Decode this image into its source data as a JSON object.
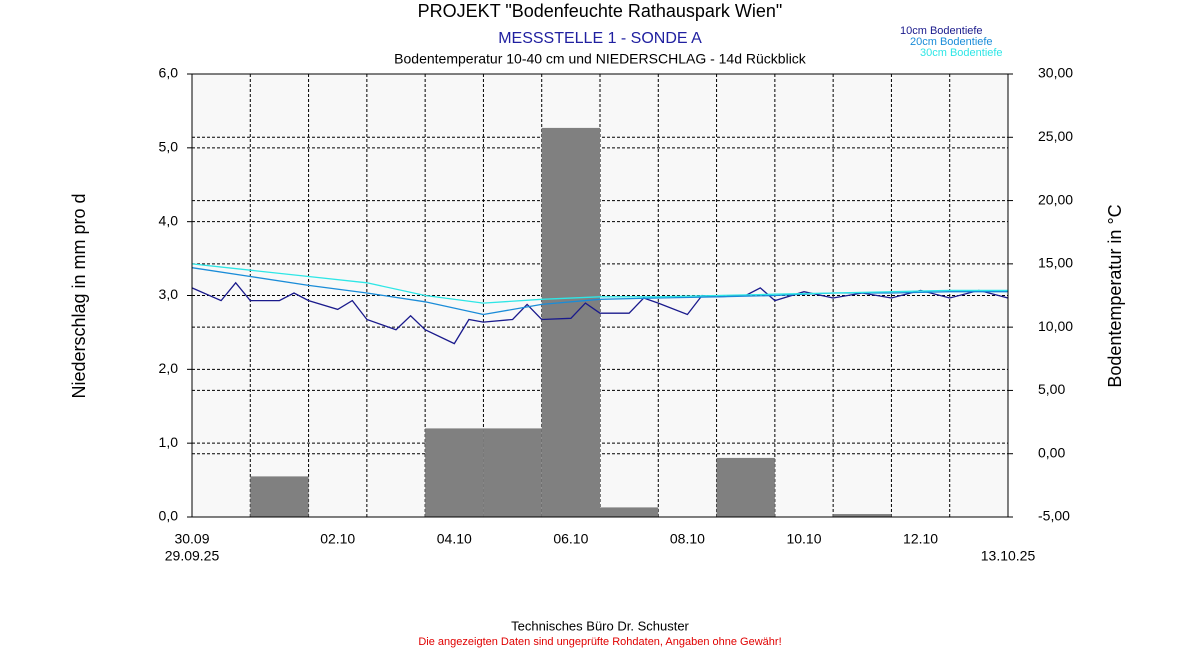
{
  "chart_data": {
    "type": "bar",
    "title": "PROJEKT \"Bodenfeuchte Rathauspark Wien\"",
    "subtitle": "MESSSTELLE 1 - SONDE A",
    "description": "Bodentemperatur 10-40 cm und NIEDERSCHLAG - 14d Rückblick",
    "ylabel": "Niederschlag in mm pro d",
    "y2label": "Bodentemperatur in °C",
    "footer": "Technisches Büro Dr. Schuster",
    "disclaimer": "Die angezeigten Daten sind ungeprüfte Rohdaten, Angaben ohne Gewähr!",
    "xlim": [
      0,
      14
    ],
    "xticks": [
      {
        "value": 0,
        "label": "30.09"
      },
      {
        "value": 2.5,
        "label": "02.10"
      },
      {
        "value": 4.5,
        "label": "04.10"
      },
      {
        "value": 6.5,
        "label": "06.10"
      },
      {
        "value": 8.5,
        "label": "08.10"
      },
      {
        "value": 10.5,
        "label": "10.10"
      },
      {
        "value": 12.5,
        "label": "12.10"
      }
    ],
    "date_labels": [
      {
        "value": 0,
        "label": "29.09.25"
      },
      {
        "value": 14,
        "label": "13.10.25"
      }
    ],
    "x": [
      0,
      1,
      2,
      3,
      4,
      5,
      6,
      7,
      8,
      9,
      10,
      11,
      12,
      13
    ],
    "values": [
      0,
      0.55,
      0,
      0,
      1.2,
      1.2,
      5.27,
      0.13,
      0,
      0.8,
      0,
      0.04,
      0,
      0
    ],
    "color": "#808080",
    "ylim": [
      0,
      6
    ],
    "yticks": [
      {
        "value": 0,
        "label": "0,0"
      },
      {
        "value": 1,
        "label": "1,0"
      },
      {
        "value": 2,
        "label": "2,0"
      },
      {
        "value": 3,
        "label": "3,0"
      },
      {
        "value": 4,
        "label": "4,0"
      },
      {
        "value": 5,
        "label": "5,0"
      },
      {
        "value": 6,
        "label": "6,0"
      }
    ],
    "y2lim": [
      -5,
      30
    ],
    "y2ticks": [
      {
        "value": -5,
        "label": "-5,00"
      },
      {
        "value": 0,
        "label": "0,00"
      },
      {
        "value": 5,
        "label": "5,00"
      },
      {
        "value": 10,
        "label": "10,00"
      },
      {
        "value": 15,
        "label": "15,00"
      },
      {
        "value": 20,
        "label": "20,00"
      },
      {
        "value": 25,
        "label": "25,00"
      },
      {
        "value": 30,
        "label": "30,00"
      }
    ],
    "grid": true,
    "series": [
      {
        "name": "10cm Bodentiefe",
        "color": "#1a1a8c",
        "axis": "y2",
        "x": [
          0,
          0.5,
          0.75,
          1,
          1.5,
          1.75,
          2,
          2.5,
          2.75,
          3,
          3.5,
          3.75,
          4,
          4.5,
          4.75,
          5,
          5.5,
          5.75,
          6,
          6.5,
          6.75,
          7,
          7.5,
          7.75,
          8,
          8.5,
          8.75,
          9,
          9.5,
          9.75,
          10,
          10.5,
          11,
          11.5,
          12,
          12.5,
          13,
          13.5,
          14
        ],
        "values": [
          13.1,
          12.1,
          13.5,
          12.1,
          12.1,
          12.7,
          12.1,
          11.4,
          12.1,
          10.6,
          9.8,
          10.9,
          9.8,
          8.7,
          10.6,
          10.4,
          10.6,
          11.8,
          10.6,
          10.7,
          11.9,
          11.1,
          11.1,
          12.3,
          11.9,
          11.0,
          12.5,
          12.4,
          12.5,
          13.1,
          12.1,
          12.8,
          12.3,
          12.7,
          12.3,
          12.9,
          12.3,
          12.9,
          12.3
        ]
      },
      {
        "name": "20cm Bodentiefe",
        "color": "#1a8cd8",
        "axis": "y2",
        "x": [
          0,
          1,
          2,
          3,
          4,
          5,
          6,
          7,
          8,
          9,
          10,
          11,
          12,
          13,
          14
        ],
        "values": [
          14.7,
          14.0,
          13.3,
          12.7,
          12.0,
          11.0,
          11.8,
          12.2,
          12.3,
          12.4,
          12.5,
          12.7,
          12.7,
          12.8,
          12.8
        ]
      },
      {
        "name": "30cm Bodentiefe",
        "color": "#2ee6e6",
        "axis": "y2",
        "x": [
          0,
          1,
          2,
          3,
          4,
          5,
          6,
          7,
          8,
          9,
          10,
          11,
          12,
          13,
          14
        ],
        "values": [
          15.0,
          14.5,
          14.0,
          13.5,
          12.5,
          11.9,
          12.2,
          12.4,
          12.4,
          12.5,
          12.6,
          12.7,
          12.8,
          12.9,
          12.9
        ]
      }
    ]
  }
}
